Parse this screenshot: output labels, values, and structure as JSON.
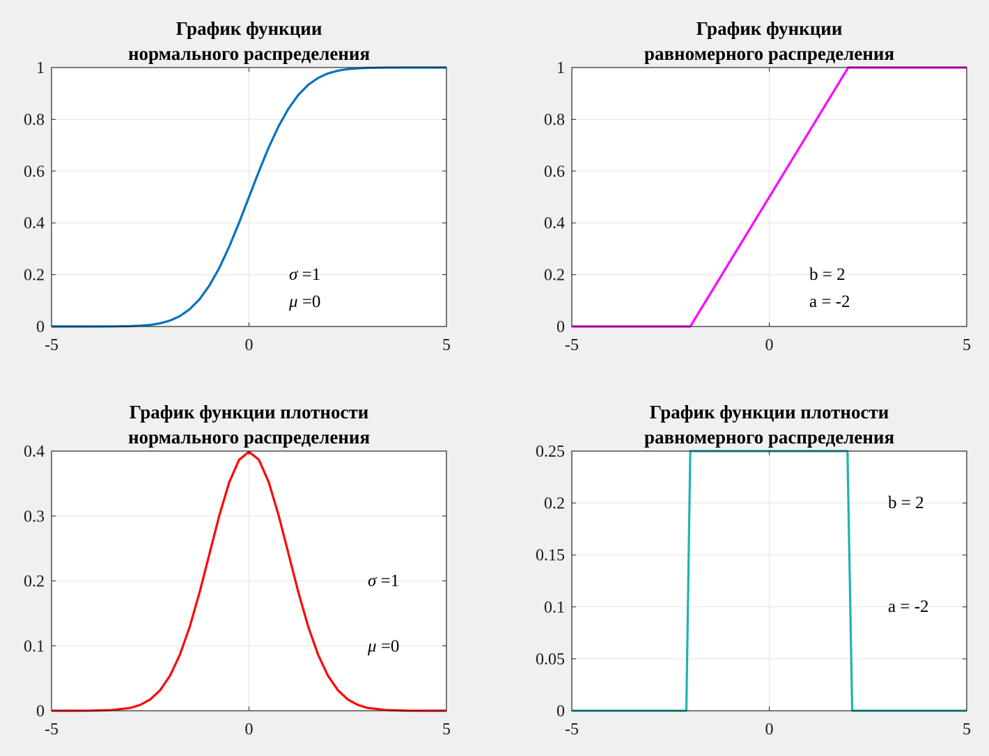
{
  "figure": {
    "background": "#f0f0f0",
    "grid": true
  },
  "chart_data": [
    {
      "type": "line",
      "title": [
        "График функции",
        "нормального распределения"
      ],
      "xlim": [
        -5,
        5
      ],
      "ylim": [
        0,
        1
      ],
      "xticks": [
        -5,
        0,
        5
      ],
      "xtick_labels": [
        "-5",
        "0",
        "5"
      ],
      "yticks": [
        0,
        0.2,
        0.4,
        0.6,
        0.8,
        1
      ],
      "ytick_labels": [
        "0",
        "0.2",
        "0.4",
        "0.6",
        "0.8",
        "1"
      ],
      "color": "#0072bd",
      "x": [
        -5,
        -4.5,
        -4,
        -3.5,
        -3,
        -2.75,
        -2.5,
        -2.25,
        -2,
        -1.75,
        -1.5,
        -1.25,
        -1,
        -0.75,
        -0.5,
        -0.25,
        0,
        0.25,
        0.5,
        0.75,
        1,
        1.25,
        1.5,
        1.75,
        2,
        2.25,
        2.5,
        2.75,
        3,
        3.5,
        4,
        4.5,
        5
      ],
      "y": [
        0,
        0,
        0,
        0.0002,
        0.0013,
        0.003,
        0.0062,
        0.0122,
        0.0228,
        0.0401,
        0.0668,
        0.1056,
        0.1587,
        0.2266,
        0.3085,
        0.4013,
        0.5,
        0.5987,
        0.6915,
        0.7734,
        0.8413,
        0.8944,
        0.9332,
        0.9599,
        0.9772,
        0.9878,
        0.9938,
        0.997,
        0.9987,
        0.9998,
        1,
        1,
        1
      ],
      "annotations": [
        {
          "symbol": "σ",
          "rest": " =1"
        },
        {
          "symbol": "μ",
          "rest": " =0"
        }
      ]
    },
    {
      "type": "line",
      "title": [
        "График функции",
        "равномерного распределения"
      ],
      "xlim": [
        -5,
        5
      ],
      "ylim": [
        0,
        1
      ],
      "xticks": [
        -5,
        0,
        5
      ],
      "xtick_labels": [
        "-5",
        "0",
        "5"
      ],
      "yticks": [
        0,
        0.2,
        0.4,
        0.6,
        0.8,
        1
      ],
      "ytick_labels": [
        "0",
        "0.2",
        "0.4",
        "0.6",
        "0.8",
        "1"
      ],
      "color": "#ff00ff",
      "x": [
        -5,
        -2,
        2,
        5
      ],
      "y": [
        0,
        0,
        1,
        1
      ],
      "annotations": [
        {
          "symbol": "",
          "rest": "b = 2"
        },
        {
          "symbol": "",
          "rest": "a = -2"
        }
      ]
    },
    {
      "type": "line",
      "title": [
        "График функции плотности",
        "нормального распределения"
      ],
      "xlim": [
        -5,
        5
      ],
      "ylim": [
        0,
        0.4
      ],
      "xticks": [
        -5,
        0,
        5
      ],
      "xtick_labels": [
        "-5",
        "0",
        "5"
      ],
      "yticks": [
        0,
        0.1,
        0.2,
        0.3,
        0.4
      ],
      "ytick_labels": [
        "0",
        "0.1",
        "0.2",
        "0.3",
        "0.4"
      ],
      "color": "#ff0000",
      "x": [
        -5,
        -4.5,
        -4,
        -3.5,
        -3,
        -2.75,
        -2.5,
        -2.25,
        -2,
        -1.75,
        -1.5,
        -1.25,
        -1,
        -0.75,
        -0.5,
        -0.25,
        0,
        0.25,
        0.5,
        0.75,
        1,
        1.25,
        1.5,
        1.75,
        2,
        2.25,
        2.5,
        2.75,
        3,
        3.5,
        4,
        4.5,
        5
      ],
      "y": [
        0,
        0,
        0.0001,
        0.0009,
        0.0044,
        0.0091,
        0.0175,
        0.0317,
        0.054,
        0.0863,
        0.1295,
        0.1826,
        0.242,
        0.3011,
        0.3521,
        0.3867,
        0.3989,
        0.3867,
        0.3521,
        0.3011,
        0.242,
        0.1826,
        0.1295,
        0.0863,
        0.054,
        0.0317,
        0.0175,
        0.0091,
        0.0044,
        0.0009,
        0.0001,
        0,
        0
      ],
      "annotations": [
        {
          "symbol": "σ",
          "rest": " =1"
        },
        {
          "symbol": "μ",
          "rest": " =0"
        }
      ]
    },
    {
      "type": "line",
      "title": [
        "График функции плотности",
        "равномерного распределения"
      ],
      "xlim": [
        -5,
        5
      ],
      "ylim": [
        0,
        0.25
      ],
      "xticks": [
        -5,
        0,
        5
      ],
      "xtick_labels": [
        "-5",
        "0",
        "5"
      ],
      "yticks": [
        0,
        0.05,
        0.1,
        0.15,
        0.2,
        0.25
      ],
      "ytick_labels": [
        "0",
        "0.05",
        "0.1",
        "0.15",
        "0.2",
        "0.25"
      ],
      "color": "#20b2b2",
      "x": [
        -5,
        -2.1,
        -2,
        1.98,
        2.1,
        5
      ],
      "y": [
        0,
        0,
        0.25,
        0.25,
        0,
        0
      ],
      "annotations": [
        {
          "symbol": "",
          "rest": "b = 2"
        },
        {
          "symbol": "",
          "rest": "a = -2"
        }
      ]
    }
  ]
}
